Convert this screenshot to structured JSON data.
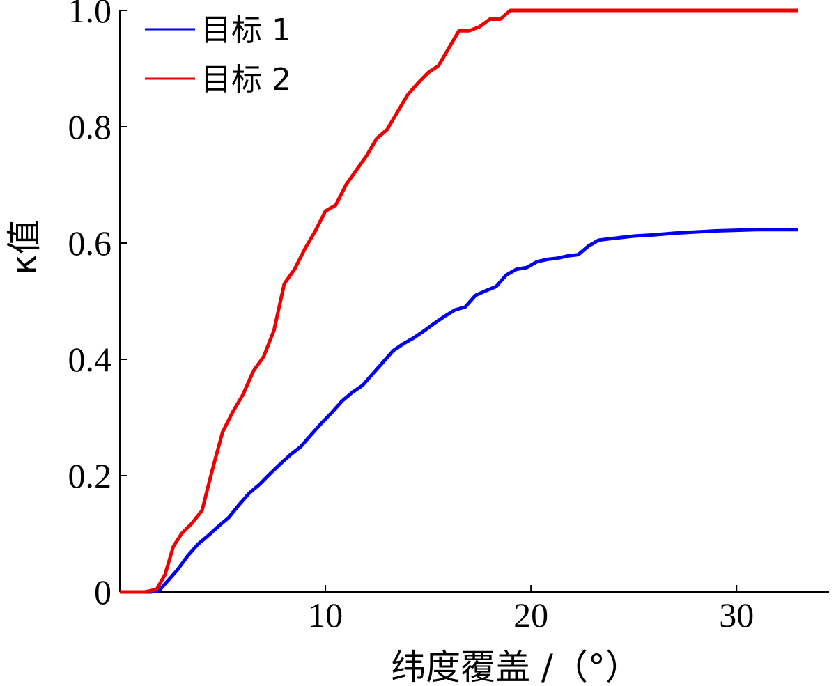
{
  "chart_data": {
    "type": "line",
    "title": "",
    "xlabel": "纬度覆盖 /（°）",
    "ylabel": "κ值",
    "xlim": [
      0,
      34.5
    ],
    "ylim": [
      0,
      1.0
    ],
    "xticks": [
      10,
      20,
      30
    ],
    "yticks": [
      0,
      0.2,
      0.4,
      0.6,
      0.8,
      1.0
    ],
    "xtick_labels": [
      "10",
      "20",
      "30"
    ],
    "ytick_labels": [
      "0",
      "0.2",
      "0.4",
      "0.6",
      "0.8",
      "1.0"
    ],
    "grid": false,
    "legend_position": "top-left",
    "series": [
      {
        "name": "目标 1",
        "color": "#0000ee",
        "x": [
          0,
          1.5,
          1.9,
          2.3,
          2.8,
          3.3,
          3.8,
          4.3,
          4.8,
          5.3,
          5.8,
          6.3,
          6.8,
          7.3,
          7.8,
          8.3,
          8.8,
          9.3,
          9.8,
          10.3,
          10.8,
          11.3,
          11.8,
          12.3,
          12.8,
          13.3,
          13.8,
          14.3,
          14.8,
          15.3,
          15.8,
          16.3,
          16.8,
          17.3,
          17.8,
          18.3,
          18.8,
          19.3,
          19.8,
          20.3,
          20.8,
          21.3,
          21.8,
          22.3,
          22.8,
          23.3,
          24,
          25,
          26,
          27,
          28,
          29,
          30,
          31,
          32,
          33
        ],
        "y": [
          0,
          0,
          0.002,
          0.018,
          0.038,
          0.062,
          0.082,
          0.097,
          0.113,
          0.128,
          0.15,
          0.17,
          0.185,
          0.203,
          0.22,
          0.236,
          0.25,
          0.27,
          0.29,
          0.308,
          0.328,
          0.343,
          0.355,
          0.375,
          0.395,
          0.415,
          0.427,
          0.437,
          0.449,
          0.462,
          0.474,
          0.485,
          0.49,
          0.51,
          0.518,
          0.525,
          0.545,
          0.555,
          0.558,
          0.568,
          0.572,
          0.574,
          0.578,
          0.58,
          0.595,
          0.605,
          0.608,
          0.612,
          0.614,
          0.617,
          0.619,
          0.621,
          0.622,
          0.623,
          0.623,
          0.623
        ]
      },
      {
        "name": "目标 2",
        "color": "#ee0000",
        "x": [
          0,
          1.2,
          1.5,
          1.8,
          2.2,
          2.6,
          3.0,
          3.5,
          4.0,
          4.5,
          5.0,
          5.5,
          6.0,
          6.5,
          7.0,
          7.5,
          8.0,
          8.5,
          9.0,
          9.5,
          10.0,
          10.5,
          11.0,
          11.5,
          12.0,
          12.5,
          13.0,
          13.5,
          14.0,
          14.5,
          15.0,
          15.5,
          16.0,
          16.5,
          17.0,
          17.5,
          18.0,
          18.5,
          19.0,
          20,
          21,
          22,
          23,
          24,
          25,
          26,
          27,
          28,
          29,
          30,
          31,
          32,
          33
        ],
        "y": [
          0,
          0,
          0.002,
          0.005,
          0.03,
          0.078,
          0.1,
          0.118,
          0.14,
          0.21,
          0.275,
          0.31,
          0.34,
          0.38,
          0.405,
          0.45,
          0.53,
          0.555,
          0.59,
          0.62,
          0.655,
          0.665,
          0.7,
          0.725,
          0.75,
          0.78,
          0.795,
          0.825,
          0.855,
          0.875,
          0.893,
          0.905,
          0.935,
          0.965,
          0.965,
          0.972,
          0.985,
          0.985,
          1.0,
          1.0,
          1.0,
          1.0,
          1.0,
          1.0,
          1.0,
          1.0,
          1.0,
          1.0,
          1.0,
          1.0,
          1.0,
          1.0,
          1.0
        ]
      }
    ]
  }
}
